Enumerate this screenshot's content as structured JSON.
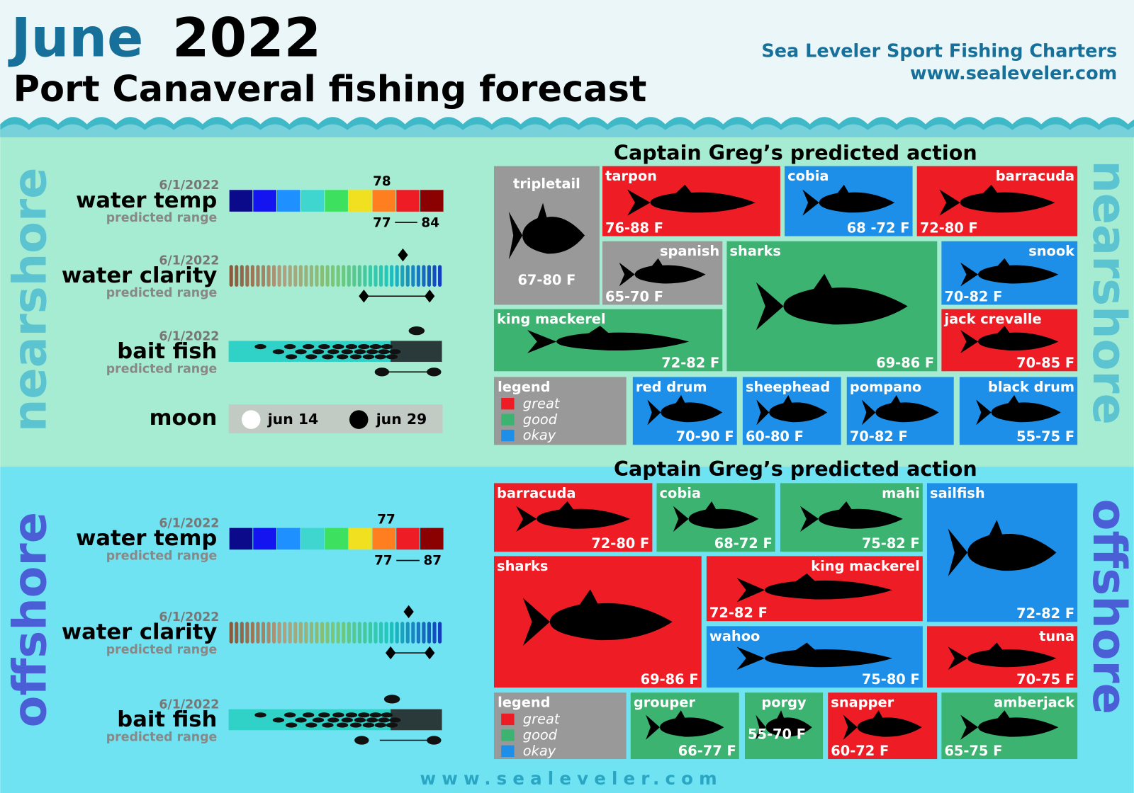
{
  "header": {
    "month": "June",
    "year": "2022",
    "subtitle": "Port Canaveral fishing forecast",
    "company": "Sea Leveler Sport Fishing Charters",
    "url": "www.sealeveler.com"
  },
  "sections": [
    {
      "label": "nearshore",
      "action_title": "Captain Greg’s predicted action",
      "conditions": {
        "water_temp": {
          "date": "6/1/2022",
          "label": "water temp",
          "sublabel": "predicted range",
          "current": 78,
          "range_low": 77,
          "range_high": 84
        },
        "water_clarity": {
          "date": "6/1/2022",
          "label": "water clarity",
          "sublabel": "predicted range"
        },
        "bait_fish": {
          "date": "6/1/2022",
          "label": "bait fish",
          "sublabel": "predicted range"
        },
        "moon": {
          "label": "moon",
          "full": "jun 14",
          "new": "jun 29"
        }
      },
      "legend": {
        "title": "legend",
        "items": [
          {
            "label": "great",
            "color": "#ee1c24"
          },
          {
            "label": "good",
            "color": "#3cb371"
          },
          {
            "label": "okay",
            "color": "#1e8fe8"
          }
        ]
      },
      "fish": [
        {
          "name": "tripletail",
          "range": "67-80 F",
          "color": "#999999"
        },
        {
          "name": "tarpon",
          "range": "76-88 F",
          "color": "#ee1c24"
        },
        {
          "name": "cobia",
          "range": "68 -72 F",
          "color": "#1e8fe8"
        },
        {
          "name": "barracuda",
          "range": "72-80 F",
          "color": "#ee1c24"
        },
        {
          "name": "spanish",
          "range": "65-70 F",
          "color": "#999999"
        },
        {
          "name": "sharks",
          "range": "69-86 F",
          "color": "#3cb371"
        },
        {
          "name": "snook",
          "range": "70-82 F",
          "color": "#1e8fe8"
        },
        {
          "name": "king mackerel",
          "range": "72-82 F",
          "color": "#3cb371"
        },
        {
          "name": "jack crevalle",
          "range": "70-85 F",
          "color": "#ee1c24"
        },
        {
          "name": "red drum",
          "range": "70-90 F",
          "color": "#1e8fe8"
        },
        {
          "name": "sheephead",
          "range": "60-80 F",
          "color": "#1e8fe8"
        },
        {
          "name": "pompano",
          "range": "70-82 F",
          "color": "#1e8fe8"
        },
        {
          "name": "black drum",
          "range": "55-75 F",
          "color": "#1e8fe8"
        }
      ]
    },
    {
      "label": "offshore",
      "action_title": "Captain Greg’s predicted action",
      "conditions": {
        "water_temp": {
          "date": "6/1/2022",
          "label": "water temp",
          "sublabel": "predicted range",
          "current": 77,
          "range_low": 77,
          "range_high": 87
        },
        "water_clarity": {
          "date": "6/1/2022",
          "label": "water clarity",
          "sublabel": "predicted range"
        },
        "bait_fish": {
          "date": "6/1/2022",
          "label": "bait fish",
          "sublabel": "predicted range"
        }
      },
      "legend": {
        "title": "legend",
        "items": [
          {
            "label": "great",
            "color": "#ee1c24"
          },
          {
            "label": "good",
            "color": "#3cb371"
          },
          {
            "label": "okay",
            "color": "#1e8fe8"
          }
        ]
      },
      "fish": [
        {
          "name": "barracuda",
          "range": "72-80 F",
          "color": "#ee1c24"
        },
        {
          "name": "cobia",
          "range": "68-72 F",
          "color": "#3cb371"
        },
        {
          "name": "mahi",
          "range": "75-82 F",
          "color": "#3cb371"
        },
        {
          "name": "sailfish",
          "range": "72-82 F",
          "color": "#1e8fe8"
        },
        {
          "name": "sharks",
          "range": "69-86 F",
          "color": "#ee1c24"
        },
        {
          "name": "king mackerel",
          "range": "72-82 F",
          "color": "#ee1c24"
        },
        {
          "name": "wahoo",
          "range": "75-80 F",
          "color": "#1e8fe8"
        },
        {
          "name": "tuna",
          "range": "70-75 F",
          "color": "#ee1c24"
        },
        {
          "name": "grouper",
          "range": "66-77 F",
          "color": "#3cb371"
        },
        {
          "name": "porgy",
          "range": "55-70 F",
          "color": "#3cb371"
        },
        {
          "name": "snapper",
          "range": "60-72 F",
          "color": "#ee1c24"
        },
        {
          "name": "amberjack",
          "range": "65-75 F",
          "color": "#3cb371"
        }
      ]
    }
  ],
  "footer_url": "www.sealeveler.com"
}
